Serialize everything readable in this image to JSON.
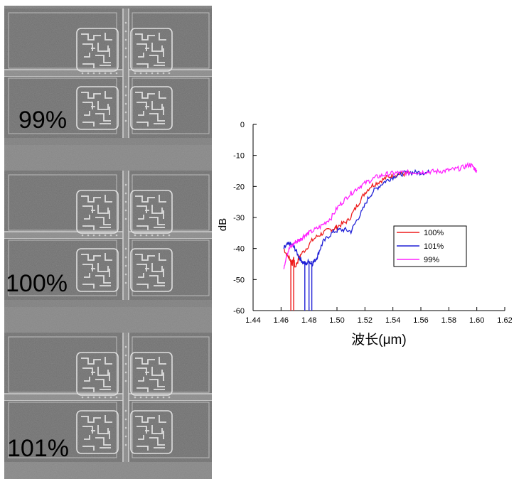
{
  "sem_image": {
    "sections": [
      {
        "label": "99%"
      },
      {
        "label": "100%"
      },
      {
        "label": "101%"
      }
    ]
  },
  "chart_data": {
    "type": "line",
    "xlabel": "波长(μm)",
    "ylabel": "dB",
    "xlim": [
      1.44,
      1.62
    ],
    "ylim": [
      -60,
      0
    ],
    "xticks": [
      "1.44",
      "1.46",
      "1.48",
      "1.50",
      "1.52",
      "1.54",
      "1.56",
      "1.58",
      "1.60",
      "1.62"
    ],
    "yticks": [
      "0",
      "-10",
      "-20",
      "-30",
      "-40",
      "-50",
      "-60"
    ],
    "legend_position": "right",
    "series": [
      {
        "name": "100%",
        "color": "#ee1c1c",
        "x": [
          1.462,
          1.464,
          1.466,
          1.467,
          1.468,
          1.469,
          1.47,
          1.472,
          1.474,
          1.478,
          1.482,
          1.486,
          1.49,
          1.494,
          1.498,
          1.5,
          1.504,
          1.508,
          1.512,
          1.516,
          1.52,
          1.524,
          1.528,
          1.532,
          1.536,
          1.54,
          1.544,
          1.548,
          1.552
        ],
        "y": [
          -40,
          -42,
          -43,
          -44,
          -45,
          -43,
          -46,
          -44,
          -42,
          -40,
          -37.5,
          -36,
          -35,
          -34,
          -33.5,
          -33,
          -32,
          -31,
          -28,
          -25,
          -22,
          -20,
          -19,
          -18,
          -17,
          -16.5,
          -16,
          -16,
          -15.5
        ],
        "dips": [
          1.467,
          1.469
        ]
      },
      {
        "name": "101%",
        "color": "#1f1fd6",
        "x": [
          1.462,
          1.464,
          1.466,
          1.468,
          1.47,
          1.472,
          1.474,
          1.476,
          1.478,
          1.48,
          1.482,
          1.484,
          1.486,
          1.488,
          1.49,
          1.494,
          1.498,
          1.502,
          1.506,
          1.51,
          1.514,
          1.518,
          1.522,
          1.526,
          1.53,
          1.534,
          1.538,
          1.542,
          1.546,
          1.55,
          1.554,
          1.558,
          1.562,
          1.566
        ],
        "y": [
          -40,
          -39,
          -38.5,
          -39,
          -40,
          -42,
          -43.5,
          -44.5,
          -45,
          -44,
          -45,
          -44,
          -42.5,
          -40,
          -38,
          -36,
          -34.5,
          -34,
          -34,
          -34.5,
          -31,
          -28,
          -24,
          -21.5,
          -20,
          -18.5,
          -17.5,
          -16.5,
          -16,
          -15.5,
          -15.5,
          -15.5,
          -15.5,
          -15.5
        ],
        "dips": [
          1.477,
          1.48,
          1.482
        ]
      },
      {
        "name": "99%",
        "color": "#ff22ff",
        "x": [
          1.462,
          1.464,
          1.466,
          1.468,
          1.47,
          1.472,
          1.474,
          1.476,
          1.478,
          1.48,
          1.484,
          1.488,
          1.492,
          1.496,
          1.5,
          1.504,
          1.508,
          1.512,
          1.516,
          1.52,
          1.524,
          1.528,
          1.532,
          1.536,
          1.54,
          1.544,
          1.548,
          1.552,
          1.556,
          1.56,
          1.564,
          1.568,
          1.572,
          1.576,
          1.58,
          1.584,
          1.588,
          1.592,
          1.595,
          1.597,
          1.599,
          1.6
        ],
        "y": [
          -46,
          -42,
          -40,
          -39,
          -38,
          -37.5,
          -37,
          -36,
          -35.5,
          -35,
          -34,
          -33,
          -31.5,
          -30,
          -27,
          -25,
          -23,
          -21.5,
          -20,
          -19,
          -18,
          -17,
          -16.5,
          -16,
          -15.8,
          -15.6,
          -15.5,
          -15.5,
          -15.4,
          -15.4,
          -15.3,
          -15.2,
          -15.2,
          -15.0,
          -14.8,
          -14.5,
          -14.2,
          -13.5,
          -13.0,
          -13.5,
          -14.5,
          -15
        ]
      }
    ]
  }
}
